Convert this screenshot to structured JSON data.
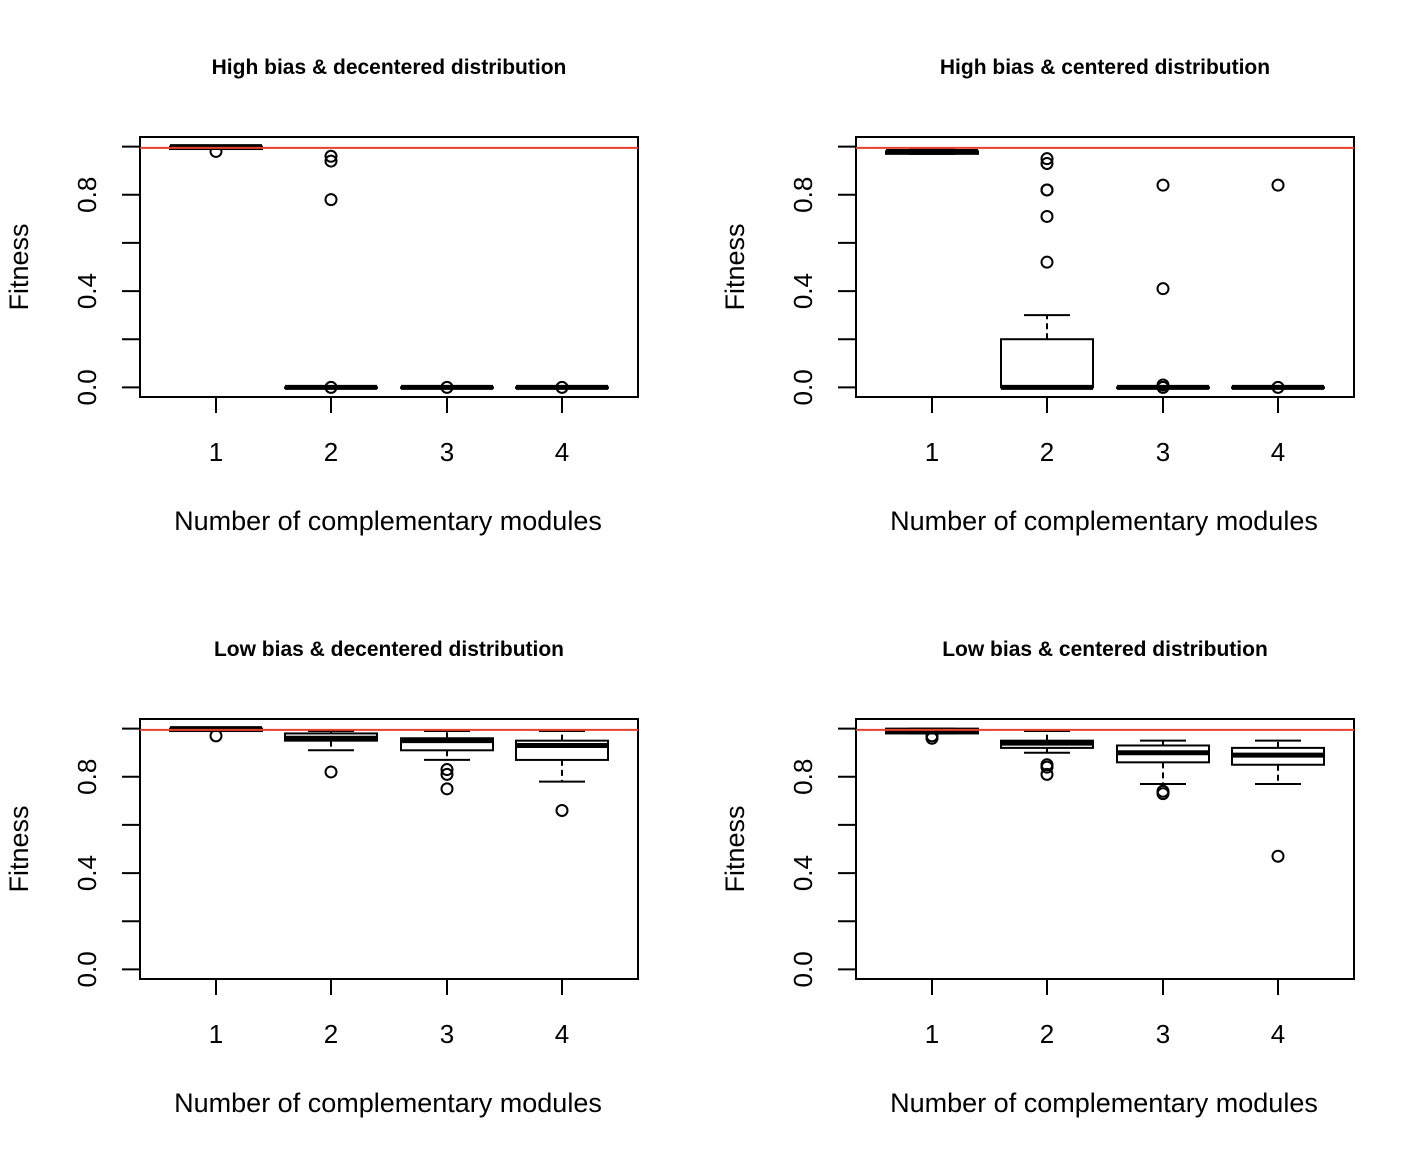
{
  "chart_data": [
    {
      "type": "boxplot",
      "title": "High bias & decentered distribution",
      "xlabel": "Number of complementary modules",
      "ylabel": "Fitness",
      "categories": [
        "1",
        "2",
        "3",
        "4"
      ],
      "ylim": [
        -0.04,
        1.04
      ],
      "yticks": [
        "0.0",
        "0.4",
        "0.8"
      ],
      "reference_line": {
        "y": 0.995,
        "color": "#e8402a"
      },
      "boxes": [
        {
          "category": "1",
          "whisker_low": 0.99,
          "q1": 0.99,
          "median": 1.0,
          "q3": 1.0,
          "whisker_high": 1.0,
          "outliers": [
            0.98
          ]
        },
        {
          "category": "2",
          "whisker_low": 0.0,
          "q1": 0.0,
          "median": 0.0,
          "q3": 0.0,
          "whisker_high": 0.0,
          "outliers": [
            0.96,
            0.94,
            0.78,
            0.0
          ]
        },
        {
          "category": "3",
          "whisker_low": 0.0,
          "q1": 0.0,
          "median": 0.0,
          "q3": 0.0,
          "whisker_high": 0.0,
          "outliers": [
            0.0
          ]
        },
        {
          "category": "4",
          "whisker_low": 0.0,
          "q1": 0.0,
          "median": 0.0,
          "q3": 0.0,
          "whisker_high": 0.0,
          "outliers": [
            0.0
          ]
        }
      ]
    },
    {
      "type": "boxplot",
      "title": "High bias & centered distribution",
      "xlabel": "Number of complementary modules",
      "ylabel": "Fitness",
      "categories": [
        "1",
        "2",
        "3",
        "4"
      ],
      "ylim": [
        -0.04,
        1.04
      ],
      "yticks": [
        "0.0",
        "0.4",
        "0.8"
      ],
      "reference_line": {
        "y": 0.995,
        "color": "#e8402a"
      },
      "boxes": [
        {
          "category": "1",
          "whisker_low": 0.97,
          "q1": 0.97,
          "median": 0.98,
          "q3": 0.98,
          "whisker_high": 0.99,
          "outliers": []
        },
        {
          "category": "2",
          "whisker_low": 0.0,
          "q1": 0.0,
          "median": 0.0,
          "q3": 0.2,
          "whisker_high": 0.3,
          "outliers": [
            0.95,
            0.93,
            0.82,
            0.82,
            0.71,
            0.52
          ]
        },
        {
          "category": "3",
          "whisker_low": 0.0,
          "q1": 0.0,
          "median": 0.0,
          "q3": 0.0,
          "whisker_high": 0.0,
          "outliers": [
            0.84,
            0.41,
            0.01,
            0.0
          ]
        },
        {
          "category": "4",
          "whisker_low": 0.0,
          "q1": 0.0,
          "median": 0.0,
          "q3": 0.0,
          "whisker_high": 0.0,
          "outliers": [
            0.84,
            0.0
          ]
        }
      ]
    },
    {
      "type": "boxplot",
      "title": "Low bias & decentered distribution",
      "xlabel": "Number of complementary modules",
      "ylabel": "Fitness",
      "categories": [
        "1",
        "2",
        "3",
        "4"
      ],
      "ylim": [
        -0.04,
        1.04
      ],
      "yticks": [
        "0.0",
        "0.4",
        "0.8"
      ],
      "reference_line": {
        "y": 0.995,
        "color": "#e8402a"
      },
      "boxes": [
        {
          "category": "1",
          "whisker_low": 0.99,
          "q1": 0.99,
          "median": 1.0,
          "q3": 1.0,
          "whisker_high": 1.0,
          "outliers": [
            0.97
          ]
        },
        {
          "category": "2",
          "whisker_low": 0.91,
          "q1": 0.95,
          "median": 0.96,
          "q3": 0.98,
          "whisker_high": 0.99,
          "outliers": [
            0.82
          ]
        },
        {
          "category": "3",
          "whisker_low": 0.87,
          "q1": 0.91,
          "median": 0.95,
          "q3": 0.96,
          "whisker_high": 0.99,
          "outliers": [
            0.83,
            0.81,
            0.75
          ]
        },
        {
          "category": "4",
          "whisker_low": 0.78,
          "q1": 0.87,
          "median": 0.93,
          "q3": 0.95,
          "whisker_high": 0.99,
          "outliers": [
            0.66
          ]
        }
      ]
    },
    {
      "type": "boxplot",
      "title": "Low bias & centered distribution",
      "xlabel": "Number of complementary modules",
      "ylabel": "Fitness",
      "categories": [
        "1",
        "2",
        "3",
        "4"
      ],
      "ylim": [
        -0.04,
        1.04
      ],
      "yticks": [
        "0.0",
        "0.4",
        "0.8"
      ],
      "reference_line": {
        "y": 0.995,
        "color": "#e8402a"
      },
      "boxes": [
        {
          "category": "1",
          "whisker_low": 0.98,
          "q1": 0.98,
          "median": 0.99,
          "q3": 1.0,
          "whisker_high": 1.0,
          "outliers": [
            0.97,
            0.96
          ]
        },
        {
          "category": "2",
          "whisker_low": 0.9,
          "q1": 0.92,
          "median": 0.94,
          "q3": 0.95,
          "whisker_high": 0.99,
          "outliers": [
            0.85,
            0.84,
            0.81
          ]
        },
        {
          "category": "3",
          "whisker_low": 0.77,
          "q1": 0.86,
          "median": 0.9,
          "q3": 0.93,
          "whisker_high": 0.95,
          "outliers": [
            0.74,
            0.73
          ]
        },
        {
          "category": "4",
          "whisker_low": 0.77,
          "q1": 0.85,
          "median": 0.89,
          "q3": 0.92,
          "whisker_high": 0.95,
          "outliers": [
            0.47
          ]
        }
      ]
    }
  ]
}
